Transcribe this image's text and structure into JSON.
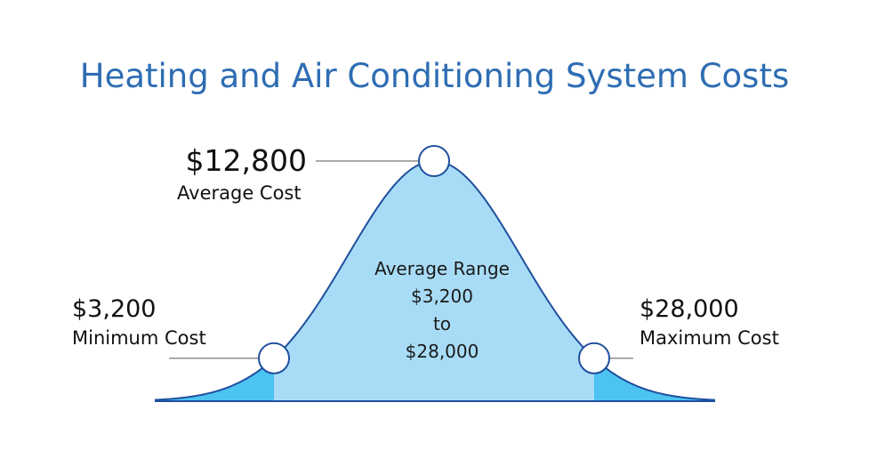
{
  "title": "Heating and Air Conditioning System Costs",
  "chart_data": {
    "type": "area",
    "title": "Heating and Air Conditioning System Costs",
    "points": [
      {
        "key": "min",
        "value": 3200,
        "value_label": "$3,200",
        "caption": "Minimum Cost"
      },
      {
        "key": "avg",
        "value": 12800,
        "value_label": "$12,800",
        "caption": "Average Cost"
      },
      {
        "key": "max",
        "value": 28000,
        "value_label": "$28,000",
        "caption": "Maximum Cost"
      }
    ],
    "range": {
      "heading": "Average Range",
      "low": "$3,200",
      "connector": "to",
      "high": "$28,000"
    },
    "colors": {
      "title": "#2e6db3",
      "curve_stroke": "#1f4f9e",
      "inner_fill": "#a8dcf6",
      "tail_fill": "#4dc3f2",
      "marker_fill": "#ffffff",
      "leader_line": "#777777"
    }
  }
}
